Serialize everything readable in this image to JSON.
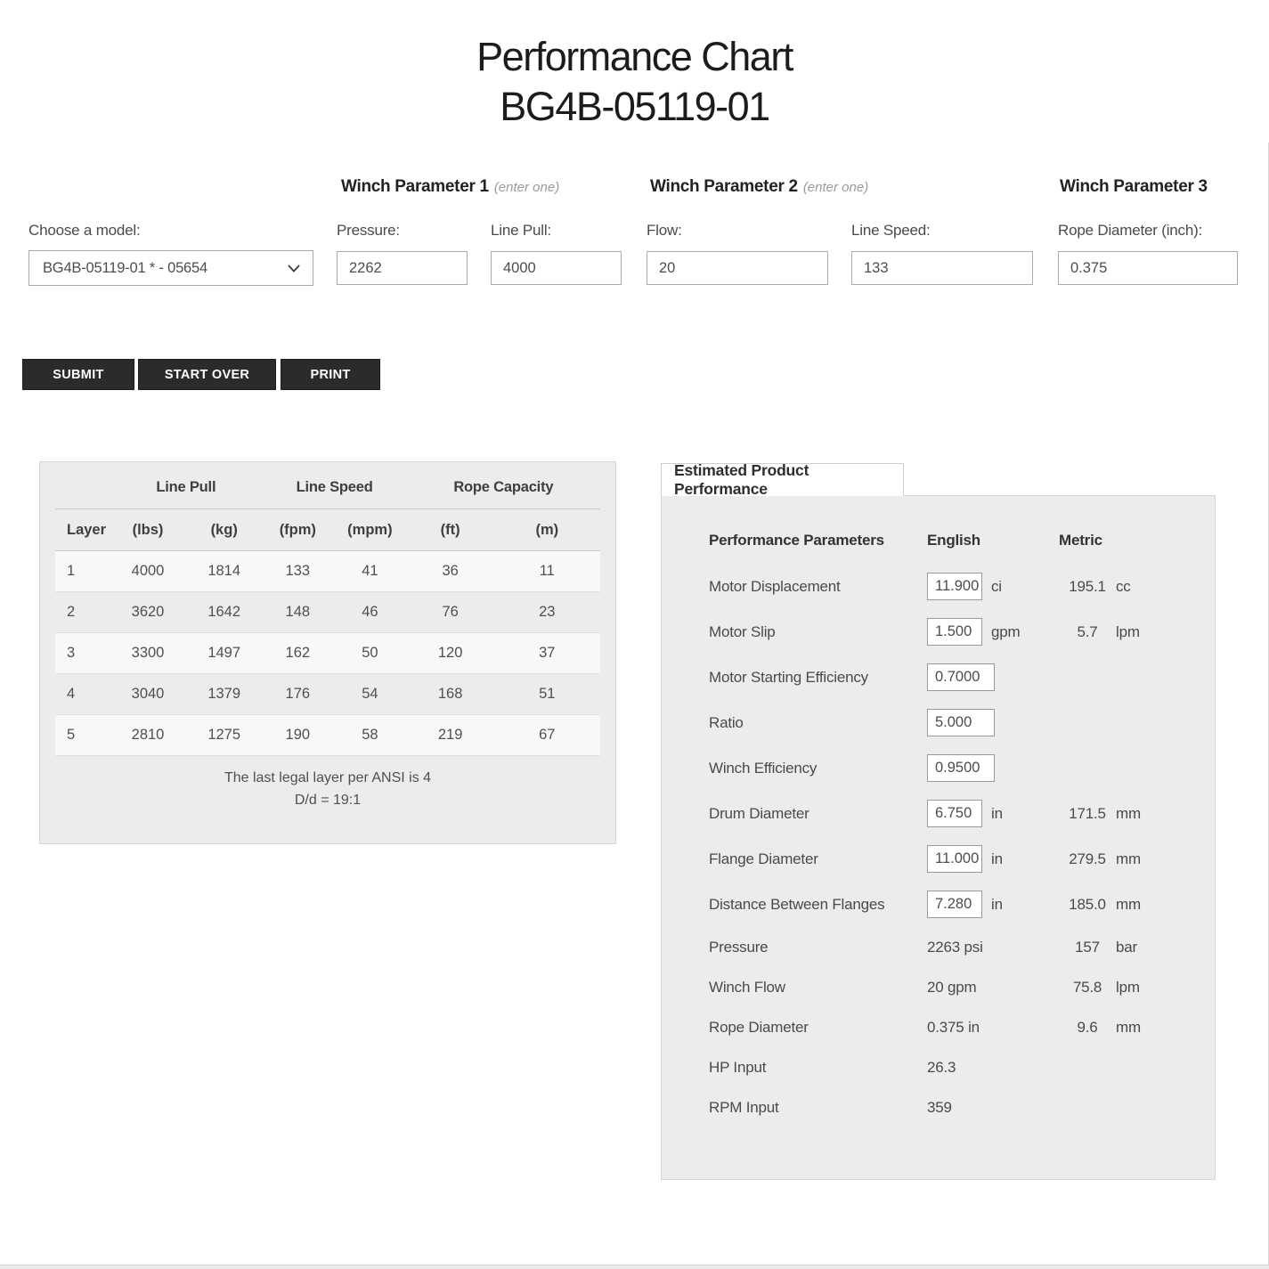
{
  "page": {
    "title_line1": "Performance Chart",
    "title_line2": "BG4B-05119-01"
  },
  "form": {
    "model": {
      "label": "Choose a model:",
      "value": "BG4B-05119-01 * - 05654"
    },
    "param1": {
      "heading": "Winch Parameter 1",
      "hint": "(enter one)",
      "fields": [
        {
          "label": "Pressure:",
          "value": "2262"
        },
        {
          "label": "Line Pull:",
          "value": "4000"
        }
      ]
    },
    "param2": {
      "heading": "Winch Parameter 2",
      "hint": "(enter one)",
      "fields": [
        {
          "label": "Flow:",
          "value": "20"
        },
        {
          "label": "Line Speed:",
          "value": "133"
        }
      ]
    },
    "param3": {
      "heading": "Winch Parameter 3",
      "fields": [
        {
          "label": "Rope Diameter (inch):",
          "value": "0.375"
        }
      ]
    },
    "buttons": {
      "submit": "SUBMIT",
      "start_over": "START OVER",
      "print": "PRINT"
    }
  },
  "layer_table": {
    "group_headers": {
      "line_pull": "Line Pull",
      "line_speed": "Line Speed",
      "rope_capacity": "Rope Capacity"
    },
    "col_headers": [
      "Layer",
      "(lbs)",
      "(kg)",
      "(fpm)",
      "(mpm)",
      "(ft)",
      "(m)"
    ],
    "rows": [
      [
        "1",
        "4000",
        "1814",
        "133",
        "41",
        "36",
        "11"
      ],
      [
        "2",
        "3620",
        "1642",
        "148",
        "46",
        "76",
        "23"
      ],
      [
        "3",
        "3300",
        "1497",
        "162",
        "50",
        "120",
        "37"
      ],
      [
        "4",
        "3040",
        "1379",
        "176",
        "54",
        "168",
        "51"
      ],
      [
        "5",
        "2810",
        "1275",
        "190",
        "58",
        "219",
        "67"
      ]
    ],
    "footnote1": "The last legal layer per ANSI is 4",
    "footnote2": "D/d = 19:1"
  },
  "performance_panel": {
    "tab_title": "Estimated Product Performance",
    "col_headers": {
      "params": "Performance Parameters",
      "english": "English",
      "metric": "Metric"
    },
    "rows": [
      {
        "label": "Motor Displacement",
        "input": "11.900",
        "unit": "ci",
        "metric": "195.1",
        "metric_unit": "cc"
      },
      {
        "label": "Motor Slip",
        "input": "1.500",
        "unit": "gpm",
        "metric": "5.7",
        "metric_unit": "lpm"
      },
      {
        "label": "Motor Starting Efficiency",
        "input": "0.7000",
        "unit": "",
        "metric": "",
        "metric_unit": ""
      },
      {
        "label": "Ratio",
        "input": "5.000",
        "unit": "",
        "metric": "",
        "metric_unit": ""
      },
      {
        "label": "Winch Efficiency",
        "input": "0.9500",
        "unit": "",
        "metric": "",
        "metric_unit": ""
      },
      {
        "label": "Drum Diameter",
        "input": "6.750",
        "unit": "in",
        "metric": "171.5",
        "metric_unit": "mm"
      },
      {
        "label": "Flange Diameter",
        "input": "11.000",
        "unit": "in",
        "metric": "279.5",
        "metric_unit": "mm"
      },
      {
        "label": "Distance Between Flanges",
        "input": "7.280",
        "unit": "in",
        "metric": "185.0",
        "metric_unit": "mm"
      },
      {
        "label": "Pressure",
        "text": "2263 psi",
        "metric": "157",
        "metric_unit": "bar"
      },
      {
        "label": "Winch Flow",
        "text": "20 gpm",
        "metric": "75.8",
        "metric_unit": "lpm"
      },
      {
        "label": "Rope Diameter",
        "text": "0.375 in",
        "metric": "9.6",
        "metric_unit": "mm"
      },
      {
        "label": "HP Input",
        "text": "26.3",
        "metric": "",
        "metric_unit": ""
      },
      {
        "label": "RPM Input",
        "text": "359",
        "metric": "",
        "metric_unit": ""
      }
    ]
  }
}
